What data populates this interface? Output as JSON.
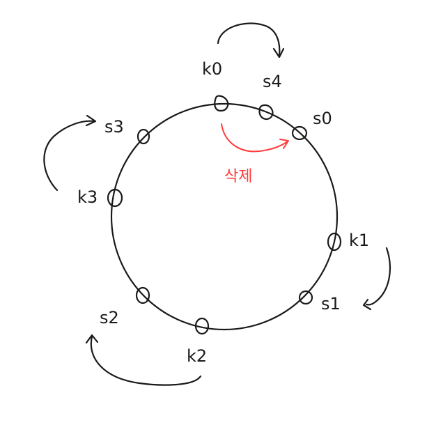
{
  "diagram": {
    "labels": {
      "k0": "k0",
      "s4": "s4",
      "s0": "s0",
      "s3": "s3",
      "k3": "k3",
      "k1": "k1",
      "s1": "s1",
      "s2": "s2",
      "k2": "k2"
    },
    "annotation": "삭제",
    "colors": {
      "ink": "#1a1a1a",
      "annotation": "#ff3b3b"
    }
  }
}
